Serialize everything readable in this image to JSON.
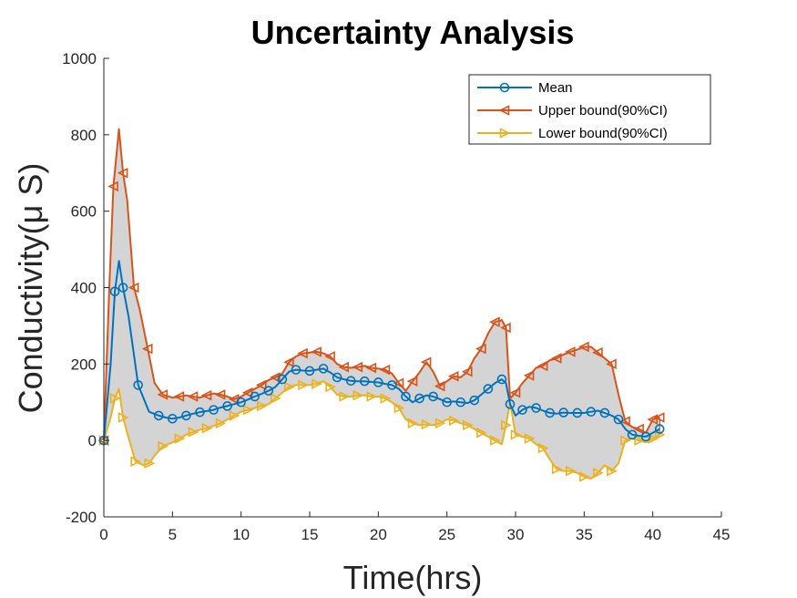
{
  "chart_data": {
    "type": "line",
    "title": "Uncertainty Analysis",
    "xlabel": "Time(hrs)",
    "ylabel": "Conductivity(μ S)",
    "xlim": [
      0,
      45
    ],
    "ylim": [
      -200,
      1000
    ],
    "xticks": [
      0,
      5,
      10,
      15,
      20,
      25,
      30,
      35,
      40,
      45
    ],
    "yticks": [
      -200,
      0,
      200,
      400,
      600,
      800,
      1000
    ],
    "grid": false,
    "legend_position": "top-right",
    "fill_between": {
      "upper": "Upper bound(90%CI)",
      "lower": "Lower bound(90%CI)",
      "color": "#d4d4d4"
    },
    "series": [
      {
        "name": "Mean",
        "color": "#0072BD",
        "marker": "circle",
        "x": [
          0,
          0.5,
          0.8,
          1.1,
          1.4,
          1.8,
          2.5,
          3.3,
          4,
          4.5,
          5,
          5.5,
          6,
          6.5,
          7,
          7.5,
          8,
          8.5,
          9,
          9.5,
          10,
          10.5,
          11,
          11.5,
          12,
          12.5,
          13,
          13.5,
          14,
          14.5,
          15,
          15.5,
          16,
          16.5,
          17,
          17.5,
          18,
          18.5,
          19,
          19.5,
          20,
          20.5,
          21,
          21.5,
          22,
          22.5,
          23,
          23.5,
          24,
          24.5,
          25,
          25.5,
          26,
          26.5,
          27,
          27.5,
          28,
          28.5,
          29,
          29.3,
          29.6,
          30,
          30.5,
          31,
          31.5,
          32,
          32.5,
          33,
          33.5,
          34,
          34.5,
          35,
          35.5,
          36,
          36.5,
          37,
          37.5,
          38,
          38.5,
          39,
          39.5,
          40,
          40.5
        ],
        "y": [
          0,
          200,
          390,
          470,
          400,
          325,
          145,
          75,
          65,
          60,
          57,
          60,
          65,
          70,
          74,
          77,
          80,
          86,
          90,
          95,
          100,
          107,
          115,
          122,
          130,
          140,
          160,
          180,
          185,
          183,
          182,
          185,
          188,
          178,
          165,
          160,
          156,
          155,
          155,
          153,
          152,
          148,
          145,
          135,
          115,
          100,
          110,
          118,
          115,
          108,
          100,
          102,
          100,
          98,
          105,
          120,
          135,
          150,
          160,
          150,
          95,
          65,
          80,
          88,
          85,
          78,
          72,
          70,
          73,
          72,
          72,
          72,
          75,
          78,
          72,
          65,
          55,
          30,
          15,
          12,
          10,
          20,
          30
        ]
      },
      {
        "name": "Upper bound(90%CI)",
        "color": "#D95319",
        "marker": "triangle-left",
        "x": [
          0,
          0.4,
          0.7,
          1.1,
          1.4,
          1.7,
          2.2,
          2.6,
          3.2,
          3.7,
          4.3,
          5,
          5.5,
          6,
          6.5,
          7,
          7.5,
          8,
          8.5,
          9,
          9.5,
          10,
          10.5,
          11,
          11.5,
          12,
          12.5,
          13,
          13.5,
          14,
          14.5,
          15,
          15.5,
          16,
          16.5,
          17,
          17.5,
          18,
          18.5,
          19,
          19.5,
          20,
          20.5,
          21,
          21.5,
          22,
          22.5,
          23,
          23.5,
          24,
          24.5,
          25,
          25.5,
          26,
          26.5,
          27,
          27.5,
          28,
          28.5,
          29,
          29.3,
          29.6,
          30,
          30.5,
          31,
          31.5,
          32,
          32.5,
          33,
          33.5,
          34,
          34.5,
          35,
          35.5,
          36,
          36.5,
          37,
          37.5,
          38,
          38.5,
          39,
          39.5,
          40,
          40.5
        ],
        "y": [
          0,
          400,
          665,
          815,
          700,
          630,
          400,
          345,
          240,
          150,
          120,
          112,
          115,
          118,
          115,
          112,
          118,
          123,
          120,
          115,
          108,
          115,
          125,
          135,
          145,
          158,
          165,
          175,
          205,
          220,
          228,
          230,
          232,
          228,
          220,
          200,
          192,
          190,
          192,
          195,
          190,
          188,
          185,
          175,
          150,
          130,
          155,
          178,
          205,
          180,
          142,
          155,
          168,
          165,
          180,
          215,
          240,
          280,
          310,
          315,
          295,
          110,
          125,
          150,
          170,
          190,
          195,
          210,
          215,
          225,
          232,
          238,
          245,
          245,
          230,
          215,
          200,
          120,
          50,
          35,
          30,
          20,
          55,
          60
        ]
      },
      {
        "name": "Lower bound(90%CI)",
        "color": "#EDB120",
        "marker": "triangle-right",
        "x": [
          0,
          0.5,
          0.8,
          1.1,
          1.4,
          1.7,
          2.3,
          2.9,
          3.3,
          3.7,
          4.3,
          5,
          5.5,
          6,
          6.5,
          7,
          7.5,
          8,
          8.5,
          9,
          9.5,
          10,
          10.5,
          11,
          11.5,
          12,
          12.5,
          13,
          13.5,
          14,
          14.5,
          15,
          15.5,
          16,
          16.5,
          17,
          17.5,
          18,
          18.5,
          19,
          19.5,
          20,
          20.5,
          21,
          21.5,
          22,
          22.5,
          23,
          23.5,
          24,
          24.5,
          25,
          25.5,
          26,
          26.5,
          27,
          27.5,
          28,
          28.5,
          29,
          29.3,
          29.6,
          30,
          30.5,
          31,
          31.5,
          32,
          32.5,
          33,
          33.5,
          34,
          34.5,
          35,
          35.5,
          36,
          36.5,
          37,
          37.5,
          38,
          38.5,
          39,
          39.5,
          40,
          40.5
        ],
        "y": [
          0,
          60,
          110,
          135,
          60,
          20,
          -55,
          -65,
          -60,
          -40,
          -15,
          -5,
          5,
          15,
          22,
          28,
          32,
          38,
          45,
          55,
          65,
          75,
          80,
          85,
          90,
          95,
          110,
          125,
          140,
          145,
          145,
          145,
          148,
          155,
          140,
          120,
          115,
          115,
          118,
          118,
          115,
          115,
          110,
          100,
          85,
          55,
          45,
          40,
          42,
          40,
          45,
          55,
          52,
          45,
          40,
          30,
          20,
          10,
          0,
          -10,
          40,
          100,
          15,
          10,
          5,
          -10,
          -20,
          -50,
          -75,
          -80,
          -80,
          -85,
          -95,
          -100,
          -85,
          -65,
          -80,
          -60,
          0,
          5,
          0,
          -5,
          5,
          15
        ]
      }
    ]
  }
}
